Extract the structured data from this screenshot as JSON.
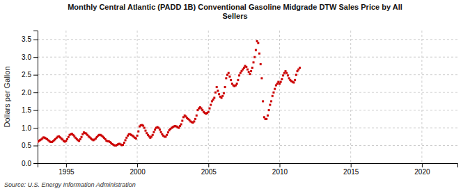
{
  "chart_data": {
    "type": "scatter",
    "title": "Monthly Central Atlantic (PADD 1B) Conventional Gasoline Midgrade DTW Sales Price by All\nSellers",
    "ylabel": "Dollars per Gallon",
    "annotations": [
      "Source: U.S. Energy Information Administration"
    ],
    "color": "#cc0000",
    "marker": "square",
    "grid": true,
    "xlim": [
      1993.0,
      2022.5
    ],
    "ylim": [
      0.0,
      3.75
    ],
    "xticks": [
      1995,
      2000,
      2005,
      2010,
      2015,
      2020
    ],
    "yticks": [
      {
        "value": 0.0,
        "label": "0.0"
      },
      0.5,
      {
        "value": 1.0,
        "label": "1.0"
      },
      1.5,
      {
        "value": 2.0,
        "label": "2.0"
      },
      2.5,
      {
        "value": 3.0,
        "label": "3.0"
      },
      3.5
    ],
    "x": [
      1993.0,
      1993.083,
      1993.167,
      1993.25,
      1993.333,
      1993.417,
      1993.5,
      1993.583,
      1993.667,
      1993.75,
      1993.833,
      1993.917,
      1994.0,
      1994.083,
      1994.167,
      1994.25,
      1994.333,
      1994.417,
      1994.5,
      1994.583,
      1994.667,
      1994.75,
      1994.833,
      1994.917,
      1995.0,
      1995.083,
      1995.167,
      1995.25,
      1995.333,
      1995.417,
      1995.5,
      1995.583,
      1995.667,
      1995.75,
      1995.833,
      1995.917,
      1996.0,
      1996.083,
      1996.167,
      1996.25,
      1996.333,
      1996.417,
      1996.5,
      1996.583,
      1996.667,
      1996.75,
      1996.833,
      1996.917,
      1997.0,
      1997.083,
      1997.167,
      1997.25,
      1997.333,
      1997.417,
      1997.5,
      1997.583,
      1997.667,
      1997.75,
      1997.833,
      1997.917,
      1998.0,
      1998.083,
      1998.167,
      1998.25,
      1998.333,
      1998.417,
      1998.5,
      1998.583,
      1998.667,
      1998.75,
      1998.833,
      1998.917,
      1999.0,
      1999.083,
      1999.167,
      1999.25,
      1999.333,
      1999.417,
      1999.5,
      1999.583,
      1999.667,
      1999.75,
      1999.833,
      1999.917,
      2000.0,
      2000.083,
      2000.167,
      2000.25,
      2000.333,
      2000.417,
      2000.5,
      2000.583,
      2000.667,
      2000.75,
      2000.833,
      2000.917,
      2001.0,
      2001.083,
      2001.167,
      2001.25,
      2001.333,
      2001.417,
      2001.5,
      2001.583,
      2001.667,
      2001.75,
      2001.833,
      2001.917,
      2002.0,
      2002.083,
      2002.167,
      2002.25,
      2002.333,
      2002.417,
      2002.5,
      2002.583,
      2002.667,
      2002.75,
      2002.833,
      2002.917,
      2003.0,
      2003.083,
      2003.167,
      2003.25,
      2003.333,
      2003.417,
      2003.5,
      2003.583,
      2003.667,
      2003.75,
      2003.833,
      2003.917,
      2004.0,
      2004.083,
      2004.167,
      2004.25,
      2004.333,
      2004.417,
      2004.5,
      2004.583,
      2004.667,
      2004.75,
      2004.833,
      2004.917,
      2005.0,
      2005.083,
      2005.167,
      2005.25,
      2005.333,
      2005.417,
      2005.5,
      2005.583,
      2005.667,
      2005.75,
      2005.833,
      2005.917,
      2006.0,
      2006.083,
      2006.167,
      2006.25,
      2006.333,
      2006.417,
      2006.5,
      2006.583,
      2006.667,
      2006.75,
      2006.833,
      2006.917,
      2007.0,
      2007.083,
      2007.167,
      2007.25,
      2007.333,
      2007.417,
      2007.5,
      2007.583,
      2007.667,
      2007.75,
      2007.833,
      2007.917,
      2008.0,
      2008.083,
      2008.167,
      2008.25,
      2008.333,
      2008.417,
      2008.5,
      2008.583,
      2008.667,
      2008.75,
      2008.833,
      2008.917,
      2009.0,
      2009.083,
      2009.167,
      2009.25,
      2009.333,
      2009.417,
      2009.5,
      2009.583,
      2009.667,
      2009.75,
      2009.833,
      2009.917,
      2010.0,
      2010.083,
      2010.167,
      2010.25,
      2010.333,
      2010.417,
      2010.5,
      2010.583,
      2010.667,
      2010.75,
      2010.833,
      2010.917,
      2011.0,
      2011.083,
      2011.167,
      2011.25,
      2011.333,
      2011.417
    ],
    "values": [
      0.6,
      0.63,
      0.65,
      0.67,
      0.7,
      0.73,
      0.72,
      0.7,
      0.68,
      0.65,
      0.62,
      0.6,
      0.6,
      0.62,
      0.65,
      0.68,
      0.72,
      0.75,
      0.76,
      0.73,
      0.7,
      0.67,
      0.63,
      0.61,
      0.63,
      0.68,
      0.74,
      0.8,
      0.82,
      0.83,
      0.8,
      0.76,
      0.72,
      0.68,
      0.65,
      0.63,
      0.68,
      0.74,
      0.82,
      0.87,
      0.85,
      0.84,
      0.8,
      0.76,
      0.73,
      0.7,
      0.67,
      0.65,
      0.67,
      0.7,
      0.74,
      0.78,
      0.8,
      0.8,
      0.78,
      0.75,
      0.72,
      0.68,
      0.64,
      0.62,
      0.62,
      0.6,
      0.57,
      0.54,
      0.52,
      0.5,
      0.5,
      0.52,
      0.54,
      0.55,
      0.53,
      0.51,
      0.52,
      0.58,
      0.65,
      0.72,
      0.78,
      0.82,
      0.82,
      0.8,
      0.78,
      0.75,
      0.72,
      0.7,
      0.78,
      0.9,
      1.04,
      1.07,
      1.08,
      1.06,
      1.0,
      0.92,
      0.85,
      0.8,
      0.76,
      0.72,
      0.75,
      0.8,
      0.88,
      0.95,
      1.0,
      1.02,
      1.0,
      0.95,
      0.88,
      0.82,
      0.78,
      0.75,
      0.75,
      0.8,
      0.87,
      0.93,
      0.97,
      1.0,
      1.02,
      1.04,
      1.05,
      1.04,
      1.02,
      1.0,
      1.05,
      1.1,
      1.2,
      1.3,
      1.35,
      1.32,
      1.28,
      1.25,
      1.22,
      1.18,
      1.16,
      1.15,
      1.18,
      1.25,
      1.35,
      1.5,
      1.55,
      1.58,
      1.55,
      1.5,
      1.45,
      1.42,
      1.4,
      1.42,
      1.45,
      1.55,
      1.65,
      1.75,
      1.8,
      1.85,
      2.0,
      2.15,
      2.05,
      1.95,
      1.88,
      1.85,
      1.9,
      1.98,
      2.15,
      2.4,
      2.5,
      2.55,
      2.45,
      2.35,
      2.25,
      2.2,
      2.18,
      2.2,
      2.25,
      2.35,
      2.48,
      2.55,
      2.6,
      2.65,
      2.7,
      2.75,
      2.72,
      2.65,
      2.58,
      2.52,
      2.6,
      2.7,
      2.85,
      3.0,
      3.2,
      3.45,
      3.4,
      3.1,
      2.8,
      2.4,
      1.75,
      1.3,
      1.25,
      1.25,
      1.35,
      1.5,
      1.65,
      1.75,
      1.9,
      2.0,
      2.1,
      2.2,
      2.25,
      2.3,
      2.25,
      2.3,
      2.38,
      2.48,
      2.55,
      2.6,
      2.55,
      2.48,
      2.4,
      2.35,
      2.32,
      2.3,
      2.28,
      2.35,
      2.5,
      2.6,
      2.65,
      2.7
    ]
  }
}
